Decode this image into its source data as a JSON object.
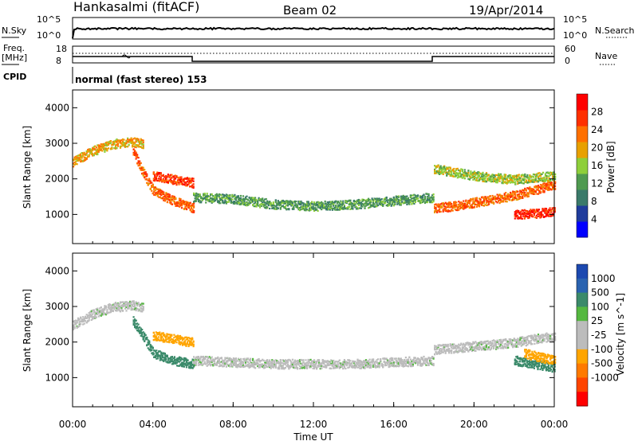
{
  "header": {
    "station": "Hankasalmi (fitACF)",
    "beam": "Beam 02",
    "date": "19/Apr/2014"
  },
  "noise_panel": {
    "left_label": "N.Sky",
    "right_label": "N.Search",
    "left_ticks": [
      "10^5",
      "10^0"
    ],
    "right_ticks": [
      "10^5",
      "10^0"
    ]
  },
  "freq_panel": {
    "left_label_1": "Freq.",
    "left_label_2": "[MHz]",
    "right_label": "Nave",
    "left_ticks": [
      "18",
      "8"
    ],
    "right_ticks": [
      "60",
      "0"
    ]
  },
  "cpid": {
    "label": "CPID",
    "text": "normal (fast stereo) 153"
  },
  "colors": {
    "power_scale": [
      "#0000ff",
      "#1f3c9c",
      "#3a7a6a",
      "#4f9a50",
      "#8ecf3a",
      "#e8a000",
      "#ff7000",
      "#ff3000",
      "#ff0000"
    ],
    "velocity_scale": [
      "#1c49b0",
      "#2a63b0",
      "#3b8a6a",
      "#55b840",
      "#bcbcbc",
      "#bcbcbc",
      "#ffa500",
      "#ff7a00",
      "#ff4500",
      "#ff0000"
    ]
  },
  "chart_data": [
    {
      "type": "heatmap",
      "name": "power",
      "ylabel": "Slant Range [km]",
      "xlim": [
        "00:00",
        "24:00"
      ],
      "ylim": [
        180,
        4500
      ],
      "yticks": [
        1000,
        2000,
        3000,
        4000
      ],
      "colorbar": {
        "label": "Power [dB]",
        "ticks": [
          4,
          8,
          12,
          16,
          20,
          24,
          28
        ],
        "range": [
          0,
          32
        ]
      },
      "bands": [
        {
          "x": [
            0.0,
            1.0,
            2.0,
            3.0,
            3.5
          ],
          "y": [
            2500,
            2800,
            3000,
            3050,
            3000
          ],
          "value": 20
        },
        {
          "x": [
            3.0,
            3.5,
            4.0,
            5.0,
            6.0
          ],
          "y": [
            2800,
            2200,
            1700,
            1400,
            1200
          ],
          "value": 24
        },
        {
          "x": [
            4.0,
            5.0,
            6.0
          ],
          "y": [
            2100,
            2000,
            1900
          ],
          "value": 26
        },
        {
          "x": [
            6.0,
            8.0,
            10.0,
            12.0,
            14.0,
            16.0,
            18.0
          ],
          "y": [
            1500,
            1450,
            1300,
            1250,
            1300,
            1400,
            1500
          ],
          "value": 12
        },
        {
          "x": [
            18.0,
            19.0,
            20.0,
            21.0,
            22.0,
            23.0,
            24.0
          ],
          "y": [
            1200,
            1250,
            1350,
            1450,
            1550,
            1700,
            1850
          ],
          "value": 24
        },
        {
          "x": [
            22.0,
            23.0,
            24.0
          ],
          "y": [
            1000,
            1050,
            1100
          ],
          "value": 28
        },
        {
          "x": [
            18.0,
            20.0,
            22.0,
            24.0
          ],
          "y": [
            2300,
            2100,
            2000,
            2100
          ],
          "value": 16
        }
      ]
    },
    {
      "type": "heatmap",
      "name": "velocity",
      "xlabel": "Time UT",
      "ylabel": "Slant Range [km]",
      "xticks": [
        "00:00",
        "04:00",
        "08:00",
        "12:00",
        "16:00",
        "20:00",
        "00:00"
      ],
      "ylim": [
        180,
        4500
      ],
      "yticks": [
        1000,
        2000,
        3000,
        4000
      ],
      "colorbar": {
        "label": "Velocity [m s^-1]",
        "ticks": [
          1000,
          500,
          100,
          25,
          -25,
          -100,
          -500,
          -1000
        ]
      },
      "bands": [
        {
          "x": [
            0.0,
            1.0,
            2.0,
            3.0,
            3.5
          ],
          "y": [
            2500,
            2800,
            3000,
            3050,
            3000
          ],
          "value": 0
        },
        {
          "x": [
            3.0,
            3.5,
            4.0,
            5.0,
            6.0
          ],
          "y": [
            2600,
            2200,
            1700,
            1500,
            1400
          ],
          "value": 150
        },
        {
          "x": [
            4.0,
            5.0,
            6.0
          ],
          "y": [
            2200,
            2100,
            2000
          ],
          "value": -200
        },
        {
          "x": [
            6.0,
            8.0,
            10.0,
            12.0,
            14.0,
            16.0,
            18.0
          ],
          "y": [
            1500,
            1450,
            1400,
            1400,
            1400,
            1450,
            1500
          ],
          "value": 0
        },
        {
          "x": [
            18.0,
            20.0,
            22.0,
            24.0
          ],
          "y": [
            1800,
            1900,
            2000,
            2200
          ],
          "value": 0
        },
        {
          "x": [
            22.0,
            23.0,
            24.0
          ],
          "y": [
            1500,
            1400,
            1300
          ],
          "value": 300
        },
        {
          "x": [
            22.5,
            23.2,
            24.0
          ],
          "y": [
            1700,
            1600,
            1500
          ],
          "value": -300
        }
      ]
    }
  ]
}
